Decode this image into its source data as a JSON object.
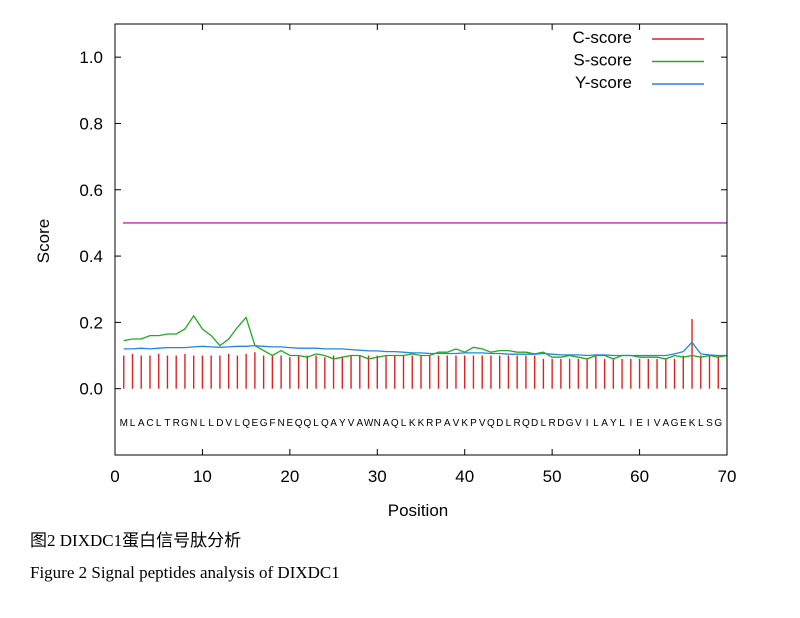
{
  "chart_data": {
    "type": "line",
    "xlabel": "Position",
    "ylabel": "Score",
    "xlim": [
      0,
      70
    ],
    "ylim": [
      -0.2,
      1.1
    ],
    "x_ticks": [
      0,
      10,
      20,
      30,
      40,
      50,
      60,
      70
    ],
    "y_ticks": [
      0.0,
      0.2,
      0.4,
      0.6,
      0.8,
      1.0
    ],
    "y_tick_labels": [
      "0.0",
      "0.2",
      "0.4",
      "0.6",
      "0.8",
      "1.0"
    ],
    "grid": false,
    "legend_position": "top-right",
    "sequence": [
      "M",
      "L",
      "A",
      "C",
      "L",
      "T",
      "R",
      "G",
      "N",
      "L",
      "L",
      "D",
      "V",
      "L",
      "Q",
      "E",
      "G",
      "F",
      "N",
      "E",
      "Q",
      "Q",
      "L",
      "Q",
      "A",
      "Y",
      "V",
      "A",
      "W",
      "N",
      "A",
      "Q",
      "L",
      "K",
      "K",
      "R",
      "P",
      "A",
      "V",
      "K",
      "P",
      "V",
      "Q",
      "D",
      "L",
      "R",
      "Q",
      "D",
      "L",
      "R",
      "D",
      "G",
      "V",
      "I",
      "L",
      "A",
      "Y",
      "L",
      "I",
      "E",
      "I",
      "V",
      "A",
      "G",
      "E",
      "K",
      "L",
      "S",
      "G"
    ],
    "threshold": {
      "y": 0.5,
      "color": "#cc44cc"
    },
    "series": [
      {
        "name": "C-score",
        "style": "impulse",
        "color": "#dd2222",
        "x": [
          1,
          2,
          3,
          4,
          5,
          6,
          7,
          8,
          9,
          10,
          11,
          12,
          13,
          14,
          15,
          16,
          17,
          18,
          19,
          20,
          21,
          22,
          23,
          24,
          25,
          26,
          27,
          28,
          29,
          30,
          31,
          32,
          33,
          34,
          35,
          36,
          37,
          38,
          39,
          40,
          41,
          42,
          43,
          44,
          45,
          46,
          47,
          48,
          49,
          50,
          51,
          52,
          53,
          54,
          55,
          56,
          57,
          58,
          59,
          60,
          61,
          62,
          63,
          64,
          65,
          66,
          67,
          68,
          69
        ],
        "values": [
          0.1,
          0.105,
          0.1,
          0.1,
          0.105,
          0.1,
          0.1,
          0.105,
          0.1,
          0.1,
          0.1,
          0.1,
          0.105,
          0.1,
          0.105,
          0.11,
          0.1,
          0.1,
          0.1,
          0.095,
          0.1,
          0.1,
          0.1,
          0.095,
          0.1,
          0.095,
          0.1,
          0.1,
          0.1,
          0.1,
          0.1,
          0.1,
          0.1,
          0.1,
          0.1,
          0.1,
          0.1,
          0.1,
          0.1,
          0.1,
          0.1,
          0.1,
          0.1,
          0.1,
          0.1,
          0.1,
          0.1,
          0.1,
          0.09,
          0.09,
          0.09,
          0.09,
          0.09,
          0.09,
          0.1,
          0.09,
          0.09,
          0.09,
          0.09,
          0.09,
          0.09,
          0.09,
          0.09,
          0.09,
          0.1,
          0.21,
          0.1,
          0.1,
          0.1
        ]
      },
      {
        "name": "S-score",
        "style": "line",
        "color": "#22aa22",
        "x": [
          1,
          2,
          3,
          4,
          5,
          6,
          7,
          8,
          9,
          10,
          11,
          12,
          13,
          14,
          15,
          16,
          17,
          18,
          19,
          20,
          21,
          22,
          23,
          24,
          25,
          26,
          27,
          28,
          29,
          30,
          31,
          32,
          33,
          34,
          35,
          36,
          37,
          38,
          39,
          40,
          41,
          42,
          43,
          44,
          45,
          46,
          47,
          48,
          49,
          50,
          51,
          52,
          53,
          54,
          55,
          56,
          57,
          58,
          59,
          60,
          61,
          62,
          63,
          64,
          65,
          66,
          67,
          68,
          69,
          70
        ],
        "values": [
          0.145,
          0.15,
          0.15,
          0.16,
          0.16,
          0.165,
          0.165,
          0.18,
          0.22,
          0.18,
          0.16,
          0.13,
          0.15,
          0.185,
          0.215,
          0.13,
          0.115,
          0.1,
          0.115,
          0.1,
          0.1,
          0.095,
          0.105,
          0.1,
          0.09,
          0.095,
          0.1,
          0.1,
          0.09,
          0.095,
          0.1,
          0.1,
          0.1,
          0.105,
          0.1,
          0.1,
          0.11,
          0.11,
          0.12,
          0.11,
          0.125,
          0.12,
          0.11,
          0.115,
          0.115,
          0.11,
          0.11,
          0.105,
          0.11,
          0.095,
          0.095,
          0.1,
          0.095,
          0.09,
          0.1,
          0.1,
          0.09,
          0.1,
          0.1,
          0.095,
          0.095,
          0.095,
          0.09,
          0.1,
          0.095,
          0.1,
          0.095,
          0.1,
          0.095,
          0.1
        ]
      },
      {
        "name": "Y-score",
        "style": "line",
        "color": "#2288dd",
        "x": [
          1,
          2,
          3,
          4,
          5,
          6,
          7,
          8,
          9,
          10,
          11,
          12,
          13,
          14,
          15,
          16,
          17,
          18,
          19,
          20,
          21,
          22,
          23,
          24,
          25,
          26,
          27,
          28,
          29,
          30,
          31,
          32,
          33,
          34,
          35,
          36,
          37,
          38,
          39,
          40,
          41,
          42,
          43,
          44,
          45,
          46,
          47,
          48,
          49,
          50,
          51,
          52,
          53,
          54,
          55,
          56,
          57,
          58,
          59,
          60,
          61,
          62,
          63,
          64,
          65,
          66,
          67,
          68,
          69,
          70
        ],
        "values": [
          0.12,
          0.12,
          0.122,
          0.12,
          0.122,
          0.124,
          0.124,
          0.124,
          0.126,
          0.128,
          0.126,
          0.125,
          0.126,
          0.128,
          0.128,
          0.13,
          0.128,
          0.126,
          0.126,
          0.124,
          0.122,
          0.122,
          0.122,
          0.12,
          0.12,
          0.12,
          0.118,
          0.116,
          0.114,
          0.114,
          0.112,
          0.112,
          0.11,
          0.108,
          0.108,
          0.106,
          0.106,
          0.106,
          0.106,
          0.108,
          0.108,
          0.108,
          0.106,
          0.106,
          0.104,
          0.104,
          0.104,
          0.104,
          0.106,
          0.104,
          0.102,
          0.102,
          0.102,
          0.1,
          0.102,
          0.102,
          0.1,
          0.1,
          0.1,
          0.1,
          0.1,
          0.1,
          0.1,
          0.105,
          0.112,
          0.14,
          0.105,
          0.102,
          0.1,
          0.1
        ]
      }
    ]
  },
  "captions": {
    "cn": "图2 DIXDC1蛋白信号肽分析",
    "en": "Figure 2 Signal peptides analysis of DIXDC1"
  }
}
